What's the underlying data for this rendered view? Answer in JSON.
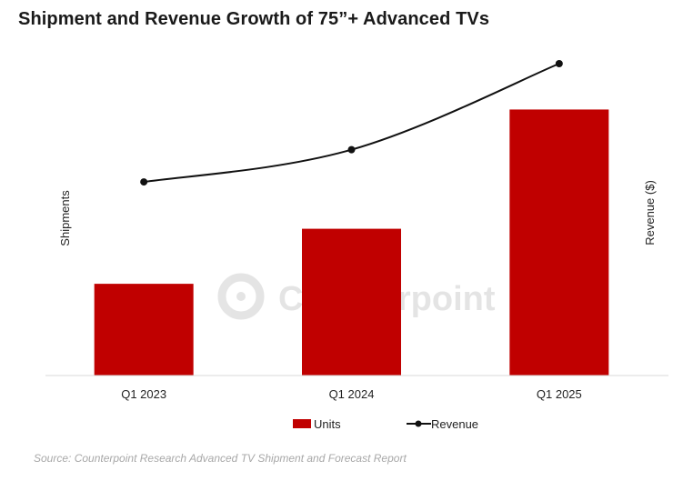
{
  "chart_data": {
    "type": "bar+line",
    "title": "Shipment and Revenue Growth of 75”+ Advanced TVs",
    "categories": [
      "Q1 2023",
      "Q1 2024",
      "Q1 2025"
    ],
    "series": [
      {
        "name": "Units",
        "type": "bar",
        "axis": "left",
        "values": [
          1.0,
          1.6,
          2.9
        ]
      },
      {
        "name": "Revenue",
        "type": "line",
        "axis": "right",
        "values": [
          1.0,
          1.3,
          2.1
        ]
      }
    ],
    "ylabel_left": "Shipments",
    "ylabel_right": "Revenue ($)",
    "ylim_left": [
      0,
      3.4
    ],
    "ylim_right": [
      -0.8,
      2.1
    ],
    "ticks_shown": false,
    "legend_position": "bottom-center",
    "colors": {
      "bar": "#c00000",
      "line": "#111111",
      "axis": "#d9d9d9"
    },
    "watermark": "Counterpoint"
  },
  "source_note": "Source: Counterpoint Research Advanced TV Shipment and Forecast Report"
}
